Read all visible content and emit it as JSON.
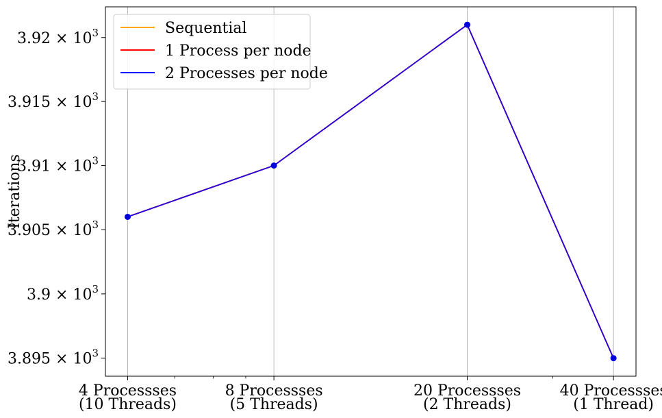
{
  "chart_data": {
    "type": "line",
    "title": "",
    "xlabel": "",
    "ylabel": "Iterations",
    "yscale": "log",
    "ylim": [
      3893.6,
      3922.4
    ],
    "xscale": "log",
    "xlim": [
      3.6,
      44.5
    ],
    "grid": "x",
    "legend_position": "top-left",
    "x": [
      4,
      8,
      20,
      40
    ],
    "categories": [
      [
        "4 Processses",
        "(10 Threads)"
      ],
      [
        "8 Processses",
        "(5 Threads)"
      ],
      [
        "20 Processses",
        "(2 Threads)"
      ],
      [
        "40 Processses",
        "(1 Thread)"
      ]
    ],
    "yticks": [
      {
        "value": 3895,
        "mantissa": "3.895"
      },
      {
        "value": 3900,
        "mantissa": "3.9"
      },
      {
        "value": 3905,
        "mantissa": "3.905"
      },
      {
        "value": 3910,
        "mantissa": "3.91"
      },
      {
        "value": 3915,
        "mantissa": "3.915"
      },
      {
        "value": 3920,
        "mantissa": "3.92"
      }
    ],
    "ytick_suffix": "× 10",
    "ytick_exponent": "3",
    "minor_xticks": [
      5,
      6,
      7,
      30
    ],
    "series": [
      {
        "name": "Sequential",
        "color": "#ffa500",
        "values": [
          3906,
          3910,
          3921,
          3895
        ]
      },
      {
        "name": "1 Process per node",
        "color": "#ff0000",
        "values": [
          3906,
          3910,
          3921,
          3895
        ]
      },
      {
        "name": "2 Processes per node",
        "color": "#0000ff",
        "values": [
          3906,
          3910,
          3921,
          3895
        ]
      }
    ],
    "line_color": "#2200dd",
    "marker_color": "#0000dd"
  }
}
